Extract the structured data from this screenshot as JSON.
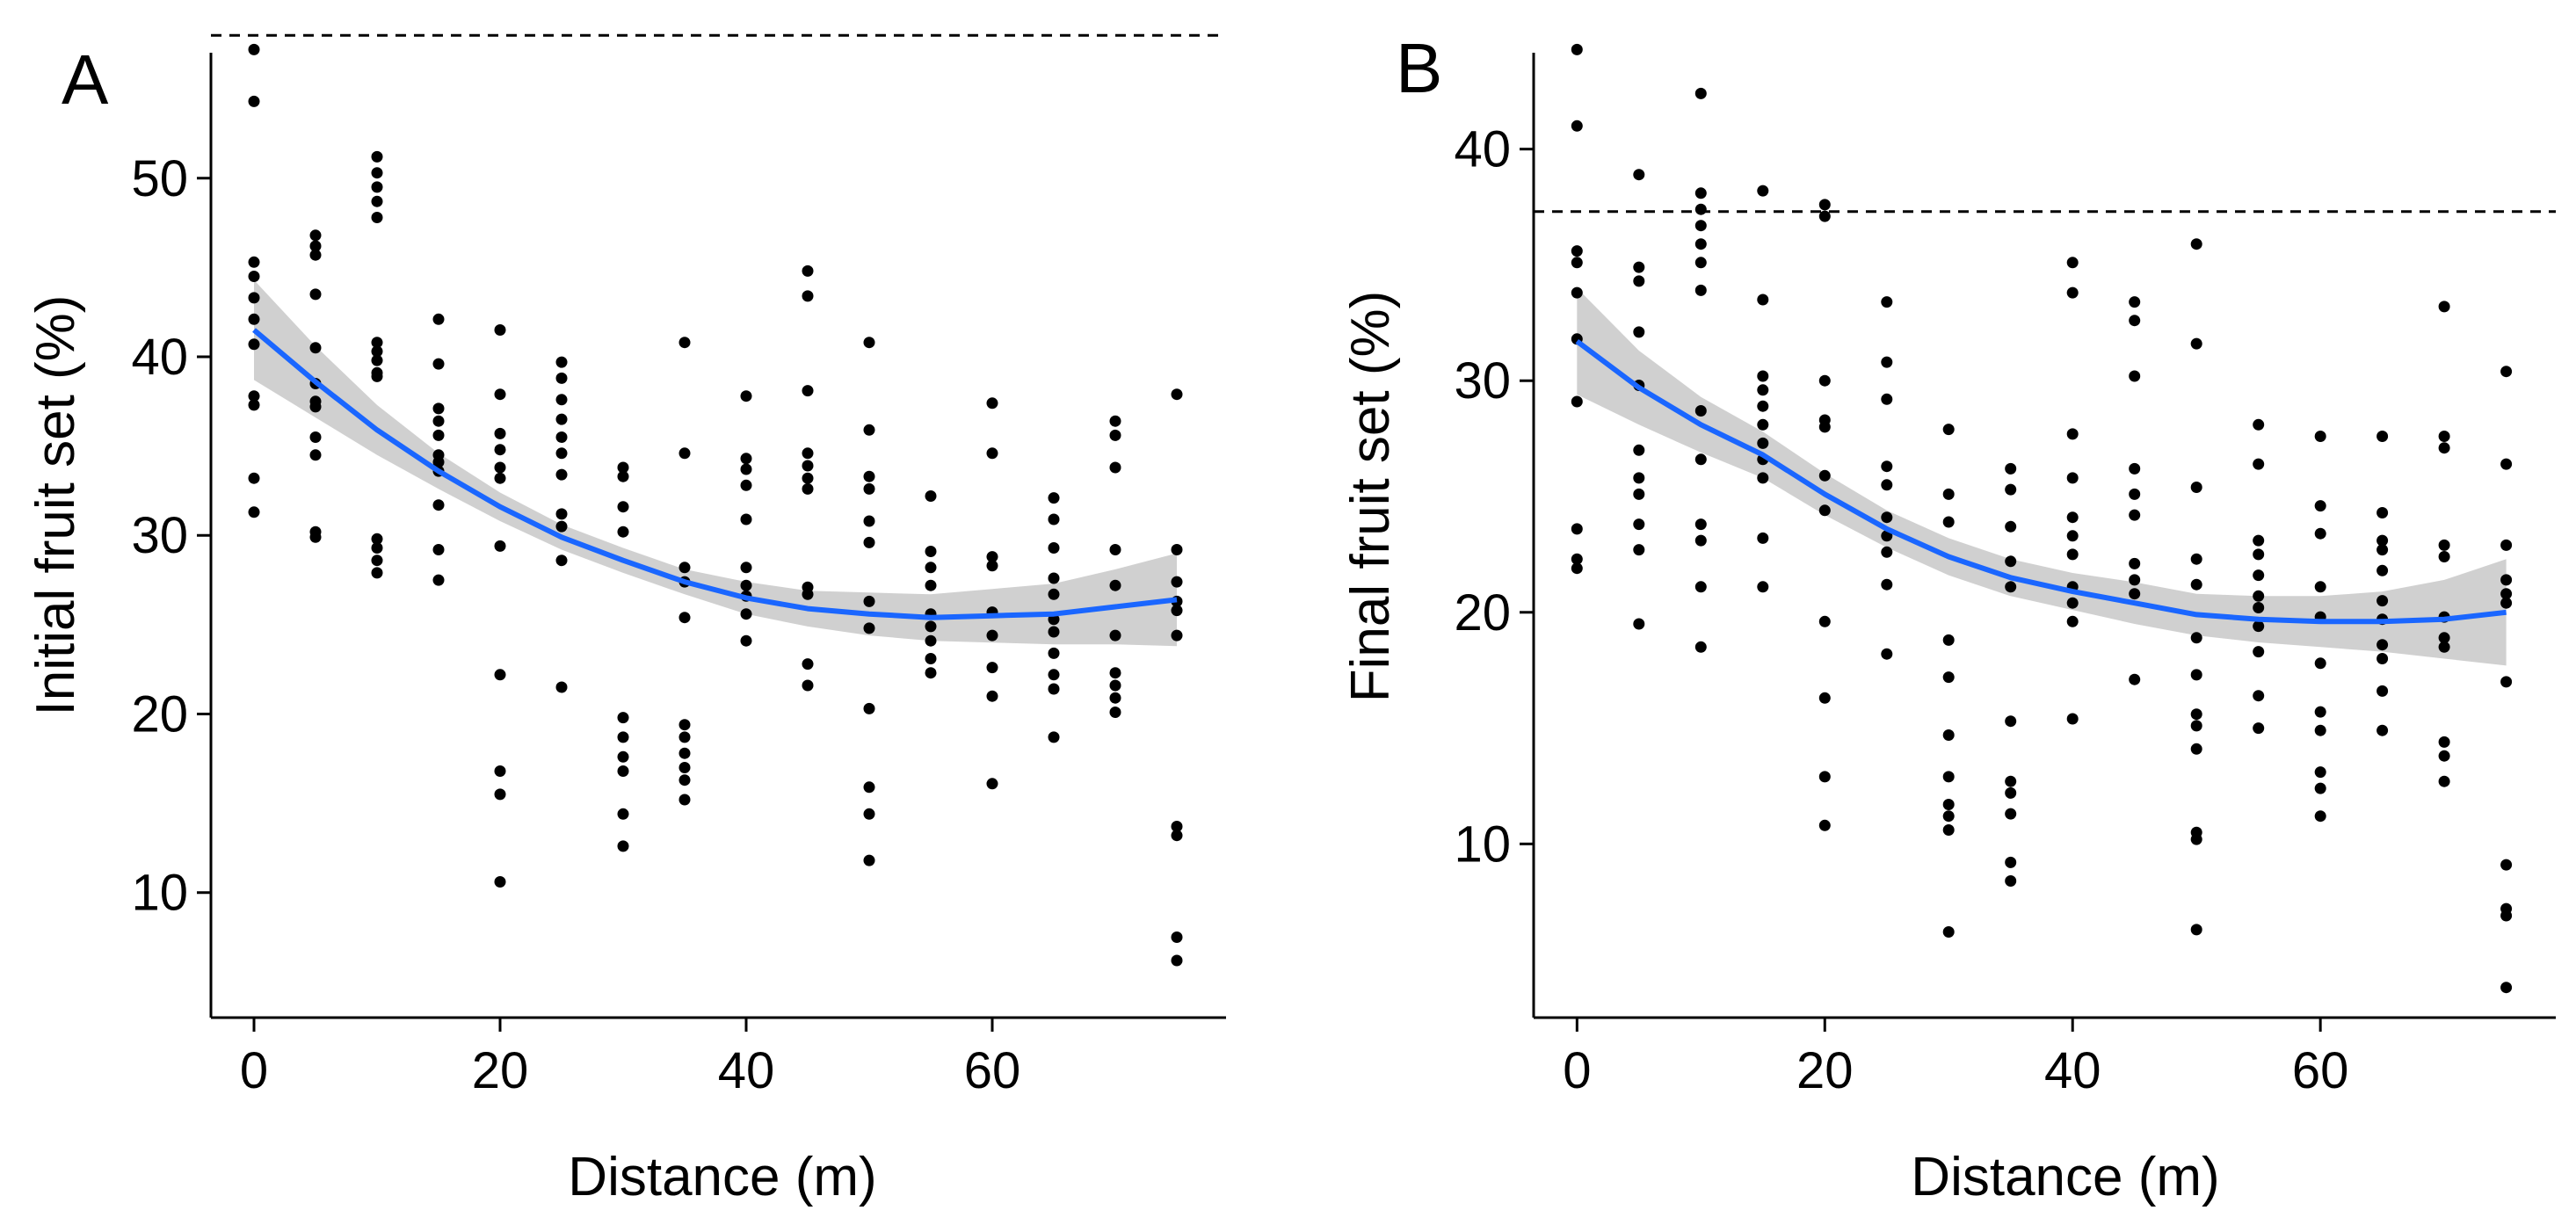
{
  "chart_data": [
    {
      "panel": "A",
      "type": "scatter",
      "xlabel": "Distance (m)",
      "ylabel": "Initial fruit set  (%)",
      "xlim": [
        -3.5,
        79
      ],
      "ylim": [
        3,
        58.5
      ],
      "xticks": [
        0,
        20,
        40,
        60
      ],
      "yticks": [
        10,
        20,
        30,
        40,
        50
      ],
      "reference_line": {
        "y": 58,
        "style": "dashed"
      },
      "points": [
        {
          "x": 0,
          "ys": [
            57.2,
            54.3,
            45.3,
            44.5,
            43.3,
            42.1,
            40.7,
            37.8,
            37.3,
            33.2,
            31.3
          ]
        },
        {
          "x": 5,
          "ys": [
            46.8,
            46.2,
            45.7,
            43.5,
            40.5,
            38.5,
            37.5,
            37.2,
            35.5,
            34.5,
            30.2,
            29.9
          ]
        },
        {
          "x": 10,
          "ys": [
            51.2,
            50.3,
            49.5,
            48.7,
            47.8,
            40.8,
            40.3,
            39.8,
            39.1,
            38.9,
            29.8,
            29.3,
            28.6,
            27.9
          ]
        },
        {
          "x": 15,
          "ys": [
            42.1,
            39.6,
            37.1,
            36.4,
            35.6,
            34.5,
            34.1,
            33.6,
            31.7,
            29.2,
            27.5
          ]
        },
        {
          "x": 20,
          "ys": [
            41.5,
            37.9,
            35.7,
            34.8,
            33.8,
            33.2,
            29.4,
            22.2,
            16.8,
            15.5,
            10.6
          ]
        },
        {
          "x": 25,
          "ys": [
            39.7,
            38.8,
            37.6,
            36.5,
            35.5,
            34.6,
            33.4,
            31.2,
            30.5,
            28.6,
            21.5
          ]
        },
        {
          "x": 30,
          "ys": [
            33.8,
            33.3,
            31.6,
            30.2,
            19.8,
            18.7,
            17.6,
            16.8,
            14.4,
            12.6
          ]
        },
        {
          "x": 35,
          "ys": [
            40.8,
            34.6,
            28.2,
            27.4,
            25.4,
            19.4,
            18.7,
            17.8,
            17.0,
            16.3,
            15.2
          ]
        },
        {
          "x": 40,
          "ys": [
            37.8,
            34.3,
            33.7,
            32.8,
            30.9,
            28.2,
            27.2,
            26.6,
            25.6,
            24.1
          ]
        },
        {
          "x": 45,
          "ys": [
            44.8,
            43.4,
            38.1,
            34.6,
            33.9,
            33.2,
            32.6,
            27.1,
            26.7,
            22.8,
            21.6
          ]
        },
        {
          "x": 50,
          "ys": [
            40.8,
            35.9,
            33.3,
            32.6,
            30.8,
            29.6,
            26.3,
            24.8,
            20.3,
            15.9,
            14.4,
            11.8
          ]
        },
        {
          "x": 55,
          "ys": [
            32.2,
            29.1,
            28.2,
            27.2,
            25.6,
            24.9,
            24.1,
            23.1,
            22.3
          ]
        },
        {
          "x": 60,
          "ys": [
            37.4,
            34.6,
            28.8,
            28.3,
            25.7,
            24.4,
            22.6,
            21.0,
            16.1
          ]
        },
        {
          "x": 65,
          "ys": [
            32.1,
            30.9,
            29.3,
            27.6,
            26.7,
            25.3,
            24.6,
            23.4,
            22.2,
            21.4,
            18.7
          ]
        },
        {
          "x": 70,
          "ys": [
            36.4,
            35.6,
            33.8,
            29.2,
            27.2,
            24.4,
            22.3,
            21.6,
            20.9,
            20.1
          ]
        },
        {
          "x": 75,
          "ys": [
            37.9,
            29.2,
            27.4,
            26.3,
            25.8,
            24.4,
            13.7,
            13.2,
            7.5,
            6.2
          ]
        }
      ],
      "fit": {
        "color": "#1a66ff",
        "x": [
          0,
          5,
          10,
          15,
          20,
          25,
          30,
          35,
          40,
          45,
          50,
          55,
          60,
          65,
          70,
          75
        ],
        "y": [
          41.5,
          38.6,
          35.9,
          33.6,
          31.6,
          29.9,
          28.6,
          27.4,
          26.5,
          25.9,
          25.6,
          25.4,
          25.5,
          25.6,
          26.0,
          26.4
        ],
        "ci_low": [
          38.7,
          36.6,
          34.5,
          32.6,
          30.8,
          29.2,
          27.9,
          26.7,
          25.6,
          24.9,
          24.4,
          24.1,
          24.0,
          23.9,
          23.9,
          23.8
        ],
        "ci_high": [
          44.3,
          40.6,
          37.3,
          34.6,
          32.4,
          30.6,
          29.3,
          28.1,
          27.4,
          26.9,
          26.8,
          26.7,
          27.0,
          27.3,
          28.1,
          29.0
        ]
      }
    },
    {
      "panel": "B",
      "type": "scatter",
      "xlabel": "Distance (m)",
      "ylabel": "Final fruit set  (%)",
      "xlim": [
        -3.5,
        79
      ],
      "ylim": [
        2.5,
        45.3
      ],
      "xticks": [
        0,
        20,
        40,
        60
      ],
      "yticks": [
        10,
        20,
        30,
        40
      ],
      "reference_line": {
        "y": 37.3,
        "style": "dashed"
      },
      "points": [
        {
          "x": 0,
          "ys": [
            44.3,
            41.0,
            35.6,
            35.1,
            33.8,
            31.8,
            29.1,
            23.6,
            22.3,
            21.9
          ]
        },
        {
          "x": 5,
          "ys": [
            38.9,
            34.9,
            34.3,
            32.1,
            29.8,
            27.0,
            25.8,
            25.1,
            23.8,
            22.7,
            19.5
          ]
        },
        {
          "x": 10,
          "ys": [
            42.4,
            38.1,
            37.4,
            36.7,
            35.9,
            35.1,
            33.9,
            28.7,
            26.6,
            23.8,
            23.1,
            21.1,
            18.5
          ]
        },
        {
          "x": 15,
          "ys": [
            38.2,
            33.5,
            30.2,
            29.6,
            28.9,
            28.1,
            27.3,
            26.6,
            25.8,
            23.2,
            21.1
          ]
        },
        {
          "x": 20,
          "ys": [
            37.6,
            37.1,
            30.0,
            28.3,
            28.0,
            25.9,
            24.4,
            19.6,
            16.3,
            12.9,
            10.8
          ]
        },
        {
          "x": 25,
          "ys": [
            33.4,
            30.8,
            29.2,
            26.3,
            25.5,
            24.1,
            23.3,
            22.6,
            21.2,
            18.2
          ]
        },
        {
          "x": 30,
          "ys": [
            27.9,
            25.1,
            23.9,
            18.8,
            17.2,
            14.7,
            12.9,
            11.7,
            11.2,
            10.6,
            6.2
          ]
        },
        {
          "x": 35,
          "ys": [
            26.2,
            25.3,
            23.7,
            22.2,
            21.1,
            15.3,
            12.7,
            12.2,
            11.3,
            9.2,
            8.4
          ]
        },
        {
          "x": 40,
          "ys": [
            35.1,
            33.8,
            27.7,
            25.8,
            24.1,
            23.3,
            22.5,
            21.1,
            20.4,
            19.6,
            15.4
          ]
        },
        {
          "x": 45,
          "ys": [
            33.4,
            32.6,
            30.2,
            26.2,
            25.1,
            24.2,
            22.1,
            21.4,
            20.8,
            17.1
          ]
        },
        {
          "x": 50,
          "ys": [
            35.9,
            31.6,
            25.4,
            22.3,
            21.2,
            18.9,
            17.3,
            15.6,
            15.1,
            14.1,
            10.5,
            10.2,
            6.3
          ]
        },
        {
          "x": 55,
          "ys": [
            28.1,
            26.4,
            23.1,
            22.5,
            21.6,
            20.7,
            20.2,
            19.4,
            18.3,
            16.4,
            15.0
          ]
        },
        {
          "x": 60,
          "ys": [
            27.6,
            24.6,
            23.4,
            21.1,
            19.8,
            17.8,
            15.7,
            14.9,
            13.1,
            12.4,
            11.2
          ]
        },
        {
          "x": 65,
          "ys": [
            27.6,
            24.3,
            23.1,
            22.7,
            21.8,
            20.5,
            19.7,
            18.6,
            18.0,
            16.6,
            14.9
          ]
        },
        {
          "x": 70,
          "ys": [
            33.2,
            27.6,
            27.1,
            22.9,
            22.4,
            19.8,
            18.9,
            18.5,
            14.4,
            13.8,
            12.7
          ]
        },
        {
          "x": 75,
          "ys": [
            30.4,
            26.4,
            22.9,
            21.4,
            20.8,
            20.4,
            17.0,
            9.1,
            7.2,
            6.9,
            3.8
          ]
        }
      ],
      "fit": {
        "color": "#1a66ff",
        "x": [
          0,
          5,
          10,
          15,
          20,
          25,
          30,
          35,
          40,
          45,
          50,
          55,
          60,
          65,
          70,
          75
        ],
        "y": [
          31.7,
          29.7,
          28.1,
          26.8,
          25.1,
          23.6,
          22.4,
          21.5,
          20.9,
          20.4,
          19.9,
          19.7,
          19.6,
          19.6,
          19.7,
          20.0
        ],
        "ci_low": [
          29.4,
          28.1,
          26.9,
          25.8,
          24.2,
          22.8,
          21.6,
          20.7,
          20.1,
          19.5,
          19.0,
          18.7,
          18.5,
          18.3,
          18.0,
          17.7
        ],
        "ci_high": [
          34.0,
          31.3,
          29.3,
          27.8,
          26.0,
          24.4,
          23.2,
          22.3,
          21.7,
          21.3,
          20.8,
          20.7,
          20.7,
          20.9,
          21.4,
          22.3
        ]
      }
    }
  ]
}
